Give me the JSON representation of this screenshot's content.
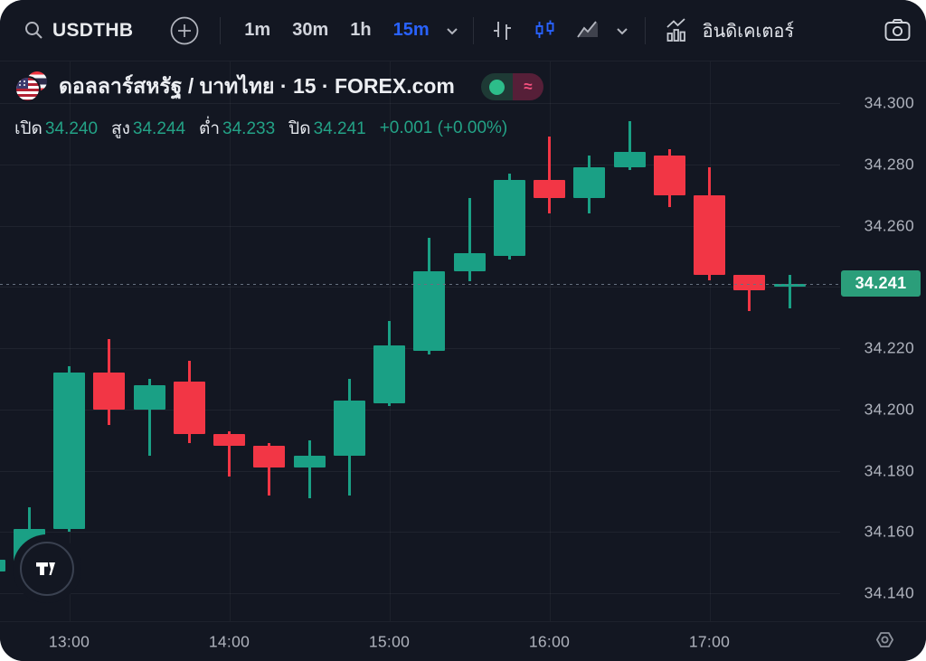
{
  "toolbar": {
    "symbol": "USDTHB",
    "search_icon": "magnifier",
    "compare_icon": "circle-plus",
    "timeframes": [
      {
        "label": "1m",
        "active": false
      },
      {
        "label": "30m",
        "active": false
      },
      {
        "label": "1h",
        "active": false
      },
      {
        "label": "15m",
        "active": true
      }
    ],
    "chart_styles": [
      "bars",
      "candles",
      "area"
    ],
    "active_style": "candles",
    "indicators_label": "อินดิเคเตอร์",
    "accent_blue": "#2962ff"
  },
  "legend": {
    "title": "ดอลลาร์สหรัฐ / บาทไทย · 15 · FOREX.com",
    "flag_icon": "us-thai-flags",
    "status_pill": {
      "dot_color": "#2dbd8a",
      "approx_symbol": "≈"
    },
    "ohlc": [
      {
        "label": "เปิด",
        "value": "34.240"
      },
      {
        "label": "สูง",
        "value": "34.244"
      },
      {
        "label": "ต่ำ",
        "value": "34.233"
      },
      {
        "label": "ปิด",
        "value": "34.241"
      }
    ],
    "change": "+0.001 (+0.00%)"
  },
  "chart_data": {
    "type": "candlestick",
    "symbol": "USDTHB",
    "interval": "15m",
    "source": "FOREX.com",
    "up_color": "#1aa085",
    "down_color": "#f23645",
    "badge_color": "#2b9e7a",
    "current_price": "34.241",
    "ylim": [
      34.14,
      34.3
    ],
    "grid_step": 0.02,
    "price_ticks": [
      "34.300",
      "34.280",
      "34.260",
      "34.220",
      "34.200",
      "34.180",
      "34.160",
      "34.140"
    ],
    "time_ticks": [
      "13:00",
      "14:00",
      "15:00",
      "16:00",
      "17:00"
    ],
    "legend_position": "top-left",
    "candles": [
      {
        "time": "12:30",
        "open": 34.147,
        "high": 34.152,
        "low": 34.145,
        "close": 34.151
      },
      {
        "time": "12:45",
        "open": 34.149,
        "high": 34.168,
        "low": 34.148,
        "close": 34.161
      },
      {
        "time": "13:00",
        "open": 34.161,
        "high": 34.214,
        "low": 34.16,
        "close": 34.212
      },
      {
        "time": "13:15",
        "open": 34.212,
        "high": 34.223,
        "low": 34.195,
        "close": 34.2
      },
      {
        "time": "13:30",
        "open": 34.2,
        "high": 34.21,
        "low": 34.185,
        "close": 34.208
      },
      {
        "time": "13:45",
        "open": 34.209,
        "high": 34.216,
        "low": 34.189,
        "close": 34.192
      },
      {
        "time": "14:00",
        "open": 34.192,
        "high": 34.193,
        "low": 34.178,
        "close": 34.188
      },
      {
        "time": "14:15",
        "open": 34.188,
        "high": 34.189,
        "low": 34.172,
        "close": 34.181
      },
      {
        "time": "14:30",
        "open": 34.181,
        "high": 34.19,
        "low": 34.171,
        "close": 34.185
      },
      {
        "time": "14:45",
        "open": 34.185,
        "high": 34.21,
        "low": 34.172,
        "close": 34.203
      },
      {
        "time": "15:00",
        "open": 34.202,
        "high": 34.229,
        "low": 34.201,
        "close": 34.221
      },
      {
        "time": "15:15",
        "open": 34.219,
        "high": 34.256,
        "low": 34.218,
        "close": 34.245
      },
      {
        "time": "15:30",
        "open": 34.245,
        "high": 34.269,
        "low": 34.242,
        "close": 34.251
      },
      {
        "time": "15:45",
        "open": 34.25,
        "high": 34.277,
        "low": 34.249,
        "close": 34.275
      },
      {
        "time": "16:00",
        "open": 34.275,
        "high": 34.289,
        "low": 34.264,
        "close": 34.269
      },
      {
        "time": "16:15",
        "open": 34.269,
        "high": 34.283,
        "low": 34.264,
        "close": 34.279
      },
      {
        "time": "16:30",
        "open": 34.279,
        "high": 34.294,
        "low": 34.278,
        "close": 34.284
      },
      {
        "time": "16:45",
        "open": 34.283,
        "high": 34.285,
        "low": 34.266,
        "close": 34.27
      },
      {
        "time": "17:00",
        "open": 34.27,
        "high": 34.279,
        "low": 34.242,
        "close": 34.244
      },
      {
        "time": "17:15",
        "open": 34.244,
        "high": 34.244,
        "low": 34.232,
        "close": 34.239
      },
      {
        "time": "17:30",
        "open": 34.24,
        "high": 34.244,
        "low": 34.233,
        "close": 34.241
      }
    ]
  },
  "time_axis": {
    "gear_icon": "settings-gear"
  },
  "watermark": "tradingview-logo"
}
